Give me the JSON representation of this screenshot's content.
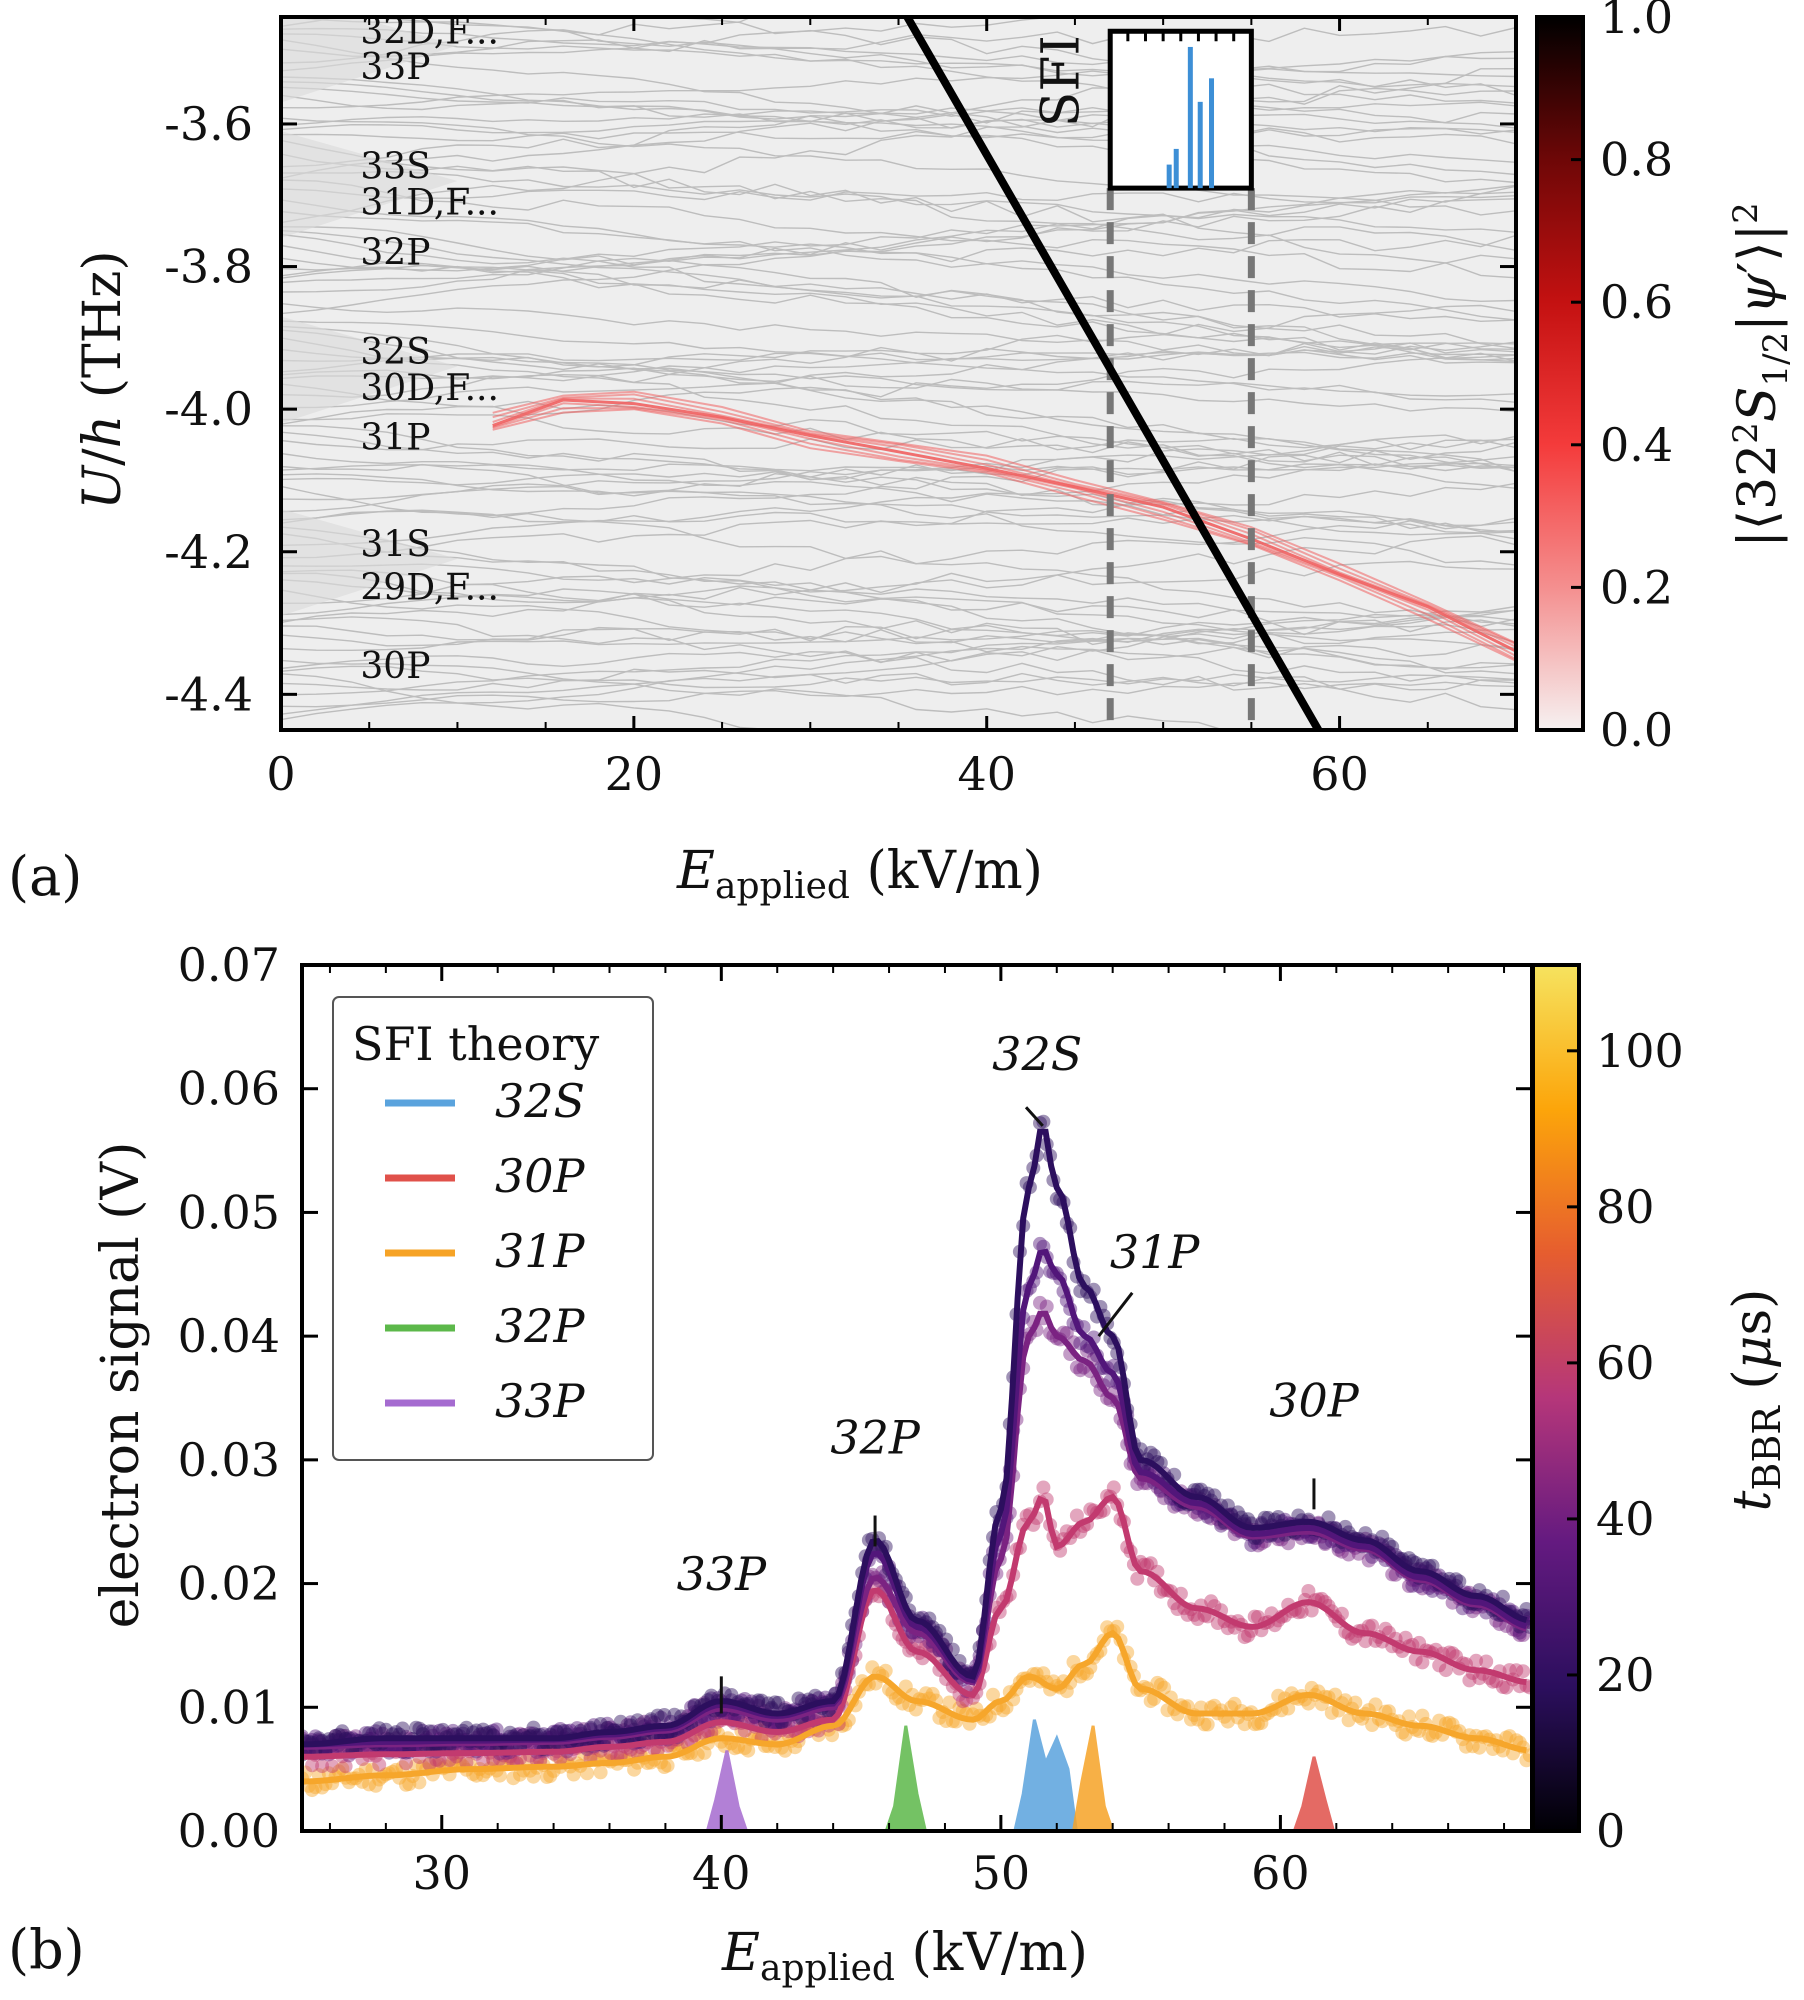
{
  "chart_data": [
    {
      "type": "line",
      "panel_label": "(a)",
      "xlabel": "E_applied (kV/m)",
      "ylabel": "U/h (THz)",
      "xlim": [
        0,
        70
      ],
      "ylim": [
        -4.45,
        -3.45
      ],
      "x_ticks": [
        "0",
        "20",
        "40",
        "60"
      ],
      "y_ticks": [
        "-3.6",
        "-3.8",
        "-4.0",
        "-4.2",
        "-4.4"
      ],
      "colorbar": {
        "label": "|⟨32²S₁/₂|ψ′⟩|²",
        "ticks": [
          "0.0",
          "0.2",
          "0.4",
          "0.6",
          "0.8",
          "1.0"
        ],
        "colors": [
          "#f6f1f1",
          "#f48f8f",
          "#f43b3b",
          "#c41111",
          "#6e0707",
          "#000000"
        ]
      },
      "state_labels": [
        {
          "text": "32D,F...",
          "y": -3.47
        },
        {
          "text": "33P",
          "y": -3.52
        },
        {
          "text": "33S",
          "y": -3.66
        },
        {
          "text": "31D,F...",
          "y": -3.71
        },
        {
          "text": "32P",
          "y": -3.78
        },
        {
          "text": "32S",
          "y": -3.92
        },
        {
          "text": "30D,F...",
          "y": -3.97
        },
        {
          "text": "31P",
          "y": -4.04
        },
        {
          "text": "31S",
          "y": -4.19
        },
        {
          "text": "29D,F...",
          "y": -4.25
        },
        {
          "text": "30P",
          "y": -4.36
        }
      ],
      "sfi_line": {
        "label": "SFI",
        "x": [
          35.5,
          58.8
        ],
        "y": [
          -3.45,
          -4.45
        ]
      },
      "dashed_window": {
        "x": [
          47,
          55
        ]
      },
      "highlighted_state_path": {
        "x": [
          12,
          16,
          20,
          25,
          30,
          35,
          40,
          45,
          50,
          55,
          60,
          65,
          70
        ],
        "y": [
          -4.02,
          -3.99,
          -3.99,
          -4.01,
          -4.04,
          -4.06,
          -4.08,
          -4.11,
          -4.14,
          -4.18,
          -4.23,
          -4.28,
          -4.34
        ]
      }
    },
    {
      "type": "line",
      "panel_label": "(b)",
      "xlabel": "E_applied (kV/m)",
      "ylabel": "electron signal (V)",
      "xlim": [
        25,
        69
      ],
      "ylim": [
        0,
        0.07
      ],
      "x_ticks": [
        "30",
        "40",
        "50",
        "60"
      ],
      "y_ticks": [
        "0.00",
        "0.01",
        "0.02",
        "0.03",
        "0.04",
        "0.05",
        "0.06",
        "0.07"
      ],
      "colorbar": {
        "label": "t_BBR (μs)",
        "ticks": [
          "0",
          "20",
          "40",
          "60",
          "80",
          "100"
        ],
        "colors": [
          "#000004",
          "#2c0f5e",
          "#641a80",
          "#b5367a",
          "#e65d2f",
          "#fca50a",
          "#f6e35f"
        ]
      },
      "legend": {
        "title": "SFI theory",
        "entries": [
          {
            "label": "32S",
            "color": "#5aa3dd"
          },
          {
            "label": "30P",
            "color": "#e0514a"
          },
          {
            "label": "31P",
            "color": "#f6a326"
          },
          {
            "label": "32P",
            "color": "#5cb84a"
          },
          {
            "label": "33P",
            "color": "#a56bd0"
          }
        ]
      },
      "peak_annotations": [
        {
          "text": "33P",
          "x": 40,
          "y": 0.0095
        },
        {
          "text": "32P",
          "x": 45.5,
          "y": 0.023
        },
        {
          "text": "32S",
          "x": 51.5,
          "y": 0.057
        },
        {
          "text": "31P",
          "x": 53.5,
          "y": 0.04
        },
        {
          "text": "30P",
          "x": 61.2,
          "y": 0.026
        }
      ],
      "series": [
        {
          "color": "#2c0f5e",
          "x": [
            25,
            28,
            31,
            34,
            36,
            38,
            40,
            42,
            44,
            45.5,
            47,
            49,
            50,
            51,
            51.5,
            52,
            53,
            54,
            55,
            57,
            59,
            61,
            63,
            65,
            67,
            69
          ],
          "y": [
            0.007,
            0.0075,
            0.0075,
            0.0075,
            0.008,
            0.0085,
            0.0105,
            0.0095,
            0.0105,
            0.0235,
            0.017,
            0.0125,
            0.026,
            0.052,
            0.057,
            0.052,
            0.044,
            0.04,
            0.03,
            0.027,
            0.0245,
            0.025,
            0.0235,
            0.021,
            0.019,
            0.017
          ]
        },
        {
          "color": "#52167a",
          "x": [
            25,
            28,
            31,
            34,
            36,
            38,
            40,
            42,
            44,
            45.5,
            47,
            49,
            50,
            51,
            51.5,
            52,
            53,
            54,
            55,
            57,
            59,
            61,
            63,
            65,
            67,
            69
          ],
          "y": [
            0.007,
            0.0072,
            0.0073,
            0.0074,
            0.0078,
            0.0083,
            0.0102,
            0.0093,
            0.0103,
            0.0225,
            0.0165,
            0.0122,
            0.024,
            0.044,
            0.047,
            0.045,
            0.04,
            0.037,
            0.029,
            0.0265,
            0.024,
            0.0245,
            0.023,
            0.0205,
            0.0185,
            0.0165
          ]
        },
        {
          "color": "#7b2382",
          "x": [
            25,
            28,
            31,
            34,
            36,
            38,
            40,
            42,
            44,
            45.5,
            47,
            49,
            50,
            51,
            51.5,
            52,
            53,
            54,
            55,
            57,
            59,
            61,
            63,
            65,
            67,
            69
          ],
          "y": [
            0.0068,
            0.007,
            0.0071,
            0.0072,
            0.0076,
            0.0081,
            0.0099,
            0.009,
            0.01,
            0.0205,
            0.016,
            0.012,
            0.022,
            0.04,
            0.042,
            0.04,
            0.038,
            0.035,
            0.0285,
            0.0262,
            0.0238,
            0.0242,
            0.0228,
            0.0203,
            0.0183,
            0.0163
          ]
        },
        {
          "color": "#c23a6f",
          "x": [
            25,
            28,
            31,
            34,
            36,
            38,
            40,
            42,
            44,
            45.5,
            47,
            49,
            50,
            51,
            51.5,
            52,
            53,
            54,
            55,
            57,
            59,
            61,
            63,
            65,
            67,
            69
          ],
          "y": [
            0.006,
            0.0062,
            0.0063,
            0.0064,
            0.0068,
            0.0072,
            0.0088,
            0.008,
            0.009,
            0.0195,
            0.0145,
            0.011,
            0.018,
            0.025,
            0.027,
            0.023,
            0.025,
            0.027,
            0.021,
            0.018,
            0.0165,
            0.0185,
            0.016,
            0.0145,
            0.013,
            0.012
          ]
        },
        {
          "color": "#f6a62b",
          "x": [
            25,
            28,
            31,
            34,
            36,
            38,
            40,
            42,
            44,
            45.5,
            47,
            49,
            50,
            51,
            52,
            53,
            54,
            55,
            57,
            59,
            61,
            63,
            65,
            67,
            69
          ],
          "y": [
            0.004,
            0.0045,
            0.005,
            0.0052,
            0.0055,
            0.006,
            0.0075,
            0.007,
            0.0085,
            0.0125,
            0.0105,
            0.009,
            0.0105,
            0.0125,
            0.0115,
            0.0135,
            0.016,
            0.0115,
            0.0095,
            0.0095,
            0.011,
            0.0095,
            0.0085,
            0.0075,
            0.0065
          ]
        }
      ],
      "sfi_theory_peaks": [
        {
          "label": "33P",
          "color": "#a56bd0",
          "x": [
            39.8,
            40.2,
            40.6
          ],
          "y": [
            0.0025,
            0.0065,
            0.002
          ]
        },
        {
          "label": "32P",
          "color": "#5cb84a",
          "x": [
            46.2,
            46.6,
            47.0
          ],
          "y": [
            0.002,
            0.0085,
            0.003
          ]
        },
        {
          "label": "32S",
          "color": "#5aa3dd",
          "x": [
            50.8,
            51.2,
            51.6,
            52.0,
            52.4
          ],
          "y": [
            0.003,
            0.009,
            0.0055,
            0.0075,
            0.005
          ]
        },
        {
          "label": "31P",
          "color": "#f6a326",
          "x": [
            52.9,
            53.3,
            53.7
          ],
          "y": [
            0.004,
            0.0085,
            0.002
          ]
        },
        {
          "label": "30P",
          "color": "#e0514a",
          "x": [
            60.8,
            61.2,
            61.6
          ],
          "y": [
            0.002,
            0.006,
            0.0025
          ]
        }
      ]
    }
  ]
}
